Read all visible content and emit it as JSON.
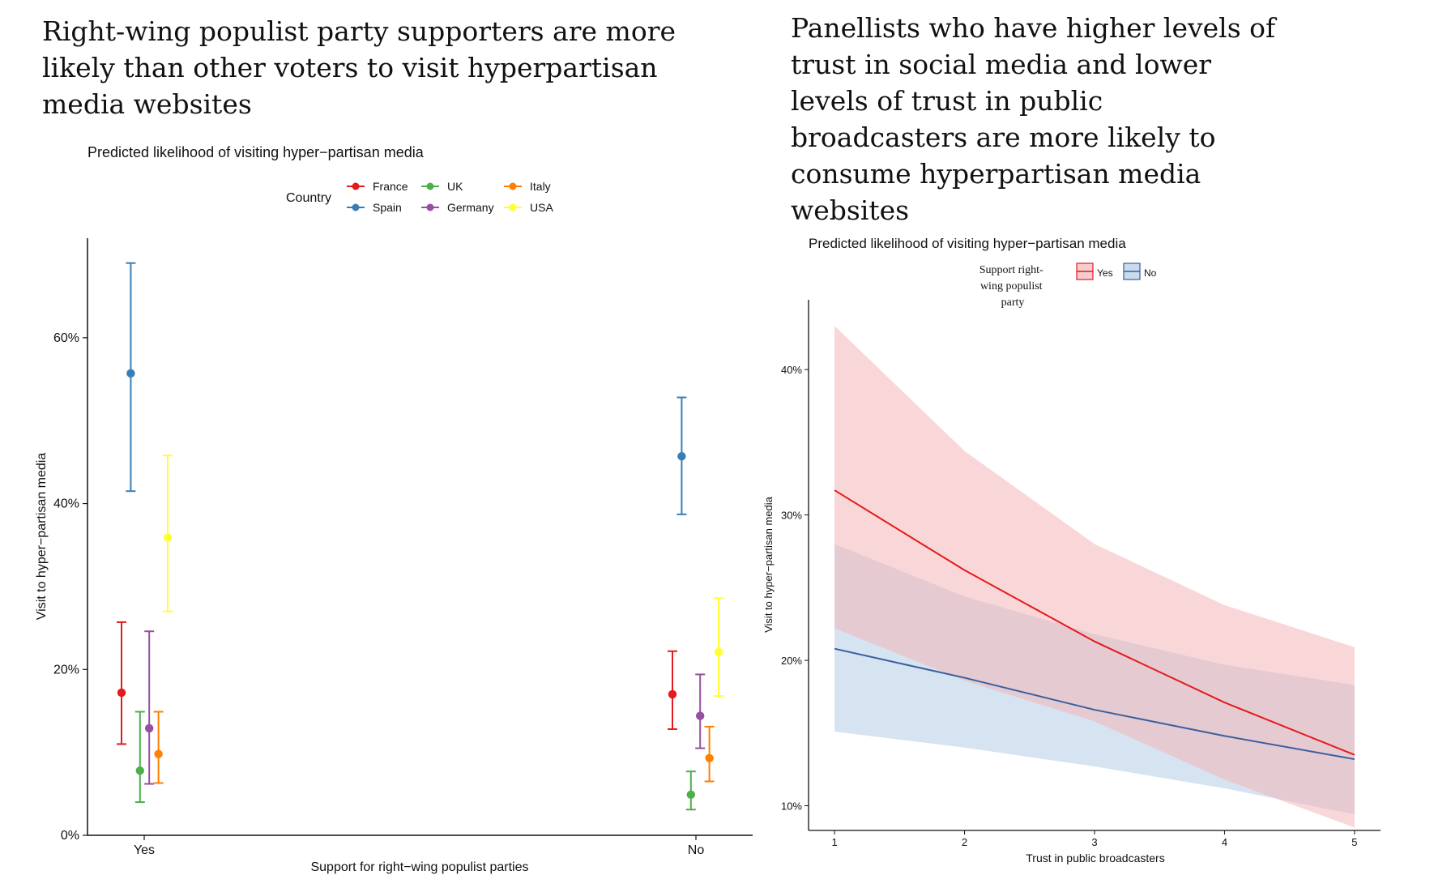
{
  "headlines": {
    "left": "Right-wing populist party supporters are more likely than other voters to visit hyperpartisan media websites",
    "right": "Panellists who have higher levels of trust in social media and lower levels of trust in public broadcasters are more likely to consume hyperpartisan media websites"
  },
  "chart_data": [
    {
      "type": "scatter",
      "subtype": "dot-with-error-bars",
      "title": "Predicted likelihood of visiting hyper−partisan media",
      "xlabel": "Support for right−wing populist parties",
      "ylabel": "Visit to hyper−partisan media",
      "categories": [
        "Yes",
        "No"
      ],
      "ylim": [
        0,
        0.72
      ],
      "yticks": [
        0,
        0.2,
        0.4,
        0.6
      ],
      "ytick_labels": [
        "0%",
        "20%",
        "40%",
        "60%"
      ],
      "legend_title": "Country",
      "series": [
        {
          "name": "France",
          "color": "#E41A1C",
          "values": [
            0.172,
            0.17
          ],
          "lower": [
            0.11,
            0.128
          ],
          "upper": [
            0.257,
            0.222
          ]
        },
        {
          "name": "Spain",
          "color": "#377EB8",
          "values": [
            0.557,
            0.457
          ],
          "lower": [
            0.415,
            0.387
          ],
          "upper": [
            0.69,
            0.528
          ]
        },
        {
          "name": "UK",
          "color": "#4DAF4A",
          "values": [
            0.078,
            0.049
          ],
          "lower": [
            0.04,
            0.031
          ],
          "upper": [
            0.149,
            0.077
          ]
        },
        {
          "name": "Germany",
          "color": "#984EA3",
          "values": [
            0.129,
            0.144
          ],
          "lower": [
            0.062,
            0.105
          ],
          "upper": [
            0.246,
            0.194
          ]
        },
        {
          "name": "Italy",
          "color": "#FF7F00",
          "values": [
            0.098,
            0.093
          ],
          "lower": [
            0.063,
            0.065
          ],
          "upper": [
            0.149,
            0.131
          ]
        },
        {
          "name": "USA",
          "color": "#FFFF33",
          "values": [
            0.359,
            0.221
          ],
          "lower": [
            0.27,
            0.168
          ],
          "upper": [
            0.458,
            0.286
          ]
        }
      ]
    },
    {
      "type": "line",
      "subtype": "line-with-confidence-band",
      "title": "Predicted likelihood of visiting hyper−partisan media",
      "xlabel": "Trust in public broadcasters",
      "ylabel": "Visit to hyper−partisan media",
      "x": [
        1,
        2,
        3,
        4,
        5
      ],
      "xlim": [
        0.8,
        5.2
      ],
      "ylim": [
        0.083,
        0.448
      ],
      "yticks": [
        0.1,
        0.2,
        0.3,
        0.4
      ],
      "ytick_labels": [
        "10%",
        "20%",
        "30%",
        "40%"
      ],
      "legend_title": "Support right-wing populist party",
      "series": [
        {
          "name": "Yes",
          "color": "#E41A1C",
          "fill": "#F4B6BA",
          "values": [
            0.317,
            0.262,
            0.213,
            0.171,
            0.135
          ],
          "lower": [
            0.222,
            0.186,
            0.158,
            0.118,
            0.085
          ],
          "upper": [
            0.43,
            0.344,
            0.28,
            0.238,
            0.209
          ]
        },
        {
          "name": "No",
          "color": "#3A5FA0",
          "fill": "#B4CCE3",
          "values": [
            0.208,
            0.188,
            0.166,
            0.148,
            0.132
          ],
          "lower": [
            0.151,
            0.14,
            0.127,
            0.112,
            0.094
          ],
          "upper": [
            0.28,
            0.244,
            0.218,
            0.197,
            0.183
          ]
        }
      ]
    }
  ]
}
